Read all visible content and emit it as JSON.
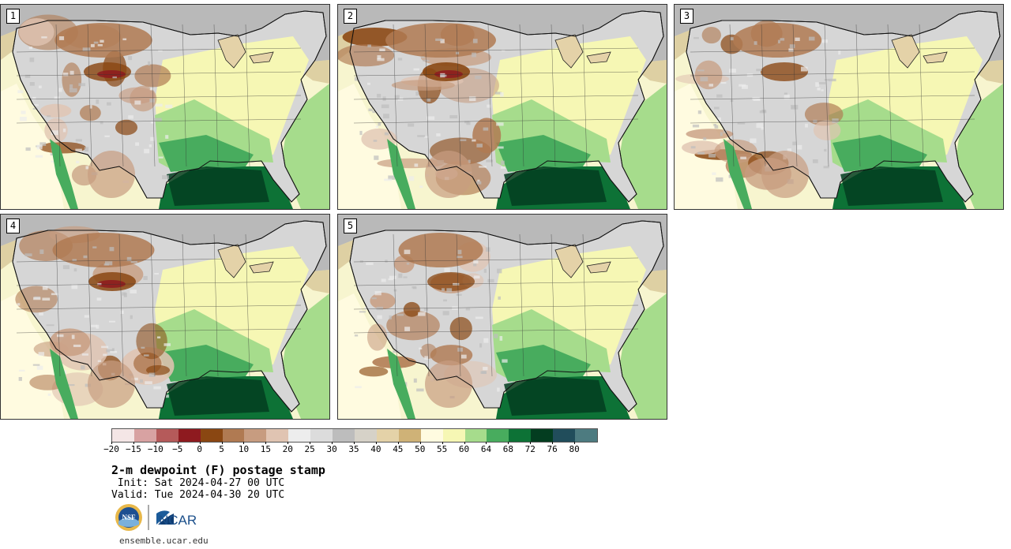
{
  "panels": [
    {
      "number": "1",
      "dry_intensity": 0.85
    },
    {
      "number": "2",
      "dry_intensity": 1.0
    },
    {
      "number": "3",
      "dry_intensity": 0.75
    },
    {
      "number": "4",
      "dry_intensity": 0.9
    },
    {
      "number": "5",
      "dry_intensity": 0.7
    }
  ],
  "colorbar": {
    "colors": [
      "#f4e6e6",
      "#d8a2a2",
      "#b55a5a",
      "#8e1a1f",
      "#8a4712",
      "#b07a52",
      "#c79c80",
      "#e0c4b2",
      "#ededed",
      "#dcdcdc",
      "#bdbdbd",
      "#d6d2c8",
      "#e4d2a8",
      "#cfb277",
      "#fffbe0",
      "#f6f7b4",
      "#a6dc8c",
      "#48ac5e",
      "#0d7236",
      "#033d20",
      "#214d5b",
      "#4d7b80"
    ],
    "tick_labels": [
      "−20",
      "−15",
      "−10",
      "−5",
      "0",
      "5",
      "10",
      "15",
      "20",
      "25",
      "30",
      "35",
      "40",
      "45",
      "50",
      "55",
      "60",
      "64",
      "68",
      "72",
      "76",
      "80"
    ]
  },
  "title": "2-m dewpoint (F) postage stamp",
  "init_line": " Init: Sat 2024-04-27 00 UTC",
  "valid_line": "Valid: Tue 2024-04-30 20 UTC",
  "logos": {
    "nsf": "NSF",
    "ncar": "NCAR"
  },
  "url": "ensemble.ucar.edu"
}
